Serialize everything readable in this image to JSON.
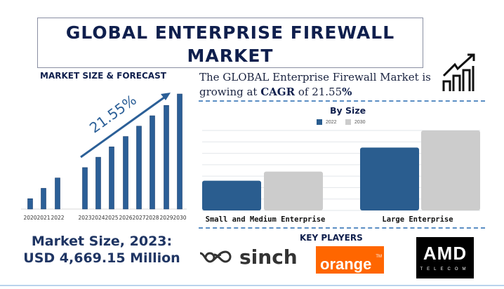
{
  "title": "GLOBAL ENTERPRISE FIREWALL MARKET",
  "forecast": {
    "heading": "MARKET SIZE & FORECAST",
    "cagr_label": "21.55%"
  },
  "intro": {
    "text_before": "The GLOBAL Enterprise Firewall Market is growing at ",
    "cagr_word": "CAGR",
    "text_mid": " of 21.55",
    "percent": "%"
  },
  "market_size": {
    "line1": "Market Size, 2023:",
    "line2": "USD 4,669.15 Million"
  },
  "key_players": {
    "heading": "KEY PLAYERS",
    "logos": [
      "sinch",
      "orange",
      "AMD",
      "TELECOM"
    ],
    "tm": "TM"
  },
  "colors": {
    "primary": "#2a5d8f",
    "secondary": "#cccccc",
    "bar": "#2b5f97",
    "navy": "#0f1f4d",
    "orange": "#ff6600"
  },
  "chart_data": [
    {
      "type": "bar",
      "title": "MARKET SIZE & FORECAST",
      "categories": [
        "2020",
        "2021",
        "2022",
        "2023",
        "2024",
        "2025",
        "2026",
        "2027",
        "2028",
        "2029",
        "2030"
      ],
      "values": [
        1,
        2,
        3,
        4,
        5,
        6,
        7,
        8,
        9,
        10,
        11.1
      ],
      "annotation": "21.55%",
      "grid": false
    },
    {
      "type": "bar",
      "title": "By Size",
      "categories": [
        "Small and Medium Enterprise",
        "Large Enterprise"
      ],
      "series": [
        {
          "name": "2022",
          "values": [
            2.6,
            5.5
          ]
        },
        {
          "name": "2030",
          "values": [
            3.4,
            7.0
          ]
        }
      ],
      "ylim": [
        0,
        7
      ],
      "grid": true,
      "legend": "top"
    }
  ]
}
